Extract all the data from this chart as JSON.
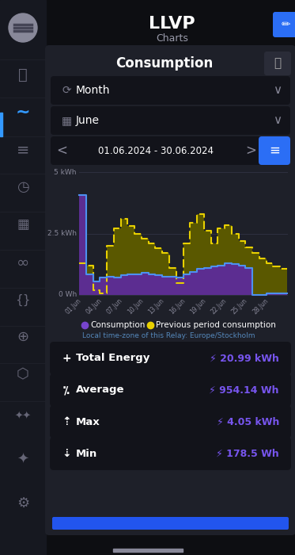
{
  "title": "LLVP",
  "subtitle": "Charts",
  "card_title": "Consumption",
  "period_label": "Month",
  "month_label": "June",
  "date_range": "01.06.2024 - 30.06.2024",
  "bg_color": "#0d0e12",
  "card_bg": "#1e2029",
  "sidebar_bg": "#161820",
  "row_bg": "#12131a",
  "x_labels": [
    "01.Jun",
    "04.Jun",
    "07.Jun",
    "10.Jun",
    "13.Jun",
    "16.Jun",
    "19.Jun",
    "22.Jun",
    "25.Jun",
    "28.Jun"
  ],
  "y_labels": [
    "0 Wh",
    "2.5 kWh",
    "5 kWh"
  ],
  "y_ticks": [
    0,
    2.5,
    5
  ],
  "consumption": [
    4.05,
    0.85,
    0.55,
    0.7,
    0.75,
    0.7,
    0.8,
    0.85,
    0.85,
    0.9,
    0.85,
    0.8,
    0.75,
    0.75,
    0.7,
    0.85,
    0.95,
    1.05,
    1.1,
    1.15,
    1.2,
    1.3,
    1.25,
    1.2,
    1.1,
    0.0,
    0.0,
    0.05,
    0.05,
    0.05
  ],
  "prev_consumption": [
    1.3,
    1.2,
    0.18,
    0.05,
    2.0,
    2.7,
    3.1,
    2.8,
    2.5,
    2.3,
    2.1,
    1.9,
    1.7,
    1.1,
    0.5,
    2.1,
    2.95,
    3.3,
    2.6,
    2.1,
    2.7,
    2.85,
    2.5,
    2.2,
    1.95,
    1.7,
    1.5,
    1.3,
    1.15,
    1.05
  ],
  "consumption_line_color": "#4d90f0",
  "consumption_fill_color": "#5c2d91",
  "prev_line_color": "#e8d000",
  "prev_fill_color": "#5a5800",
  "chart_bg": "#1e2029",
  "grid_color": "#2e3040",
  "tick_label_color": "#888899",
  "legend_consumption_color": "#7744cc",
  "legend_prev_color": "#e8d000",
  "timezone_text": "Local time-zone of this Relay: Europe/Stockholm",
  "stat_value_color": "#7755ee",
  "bottom_bar_color": "#2255ee",
  "edit_btn_color": "#2b6ef5",
  "icon_color": "#3399ff",
  "stat_bg": "#12131a",
  "divider_color": "#2a2c38"
}
